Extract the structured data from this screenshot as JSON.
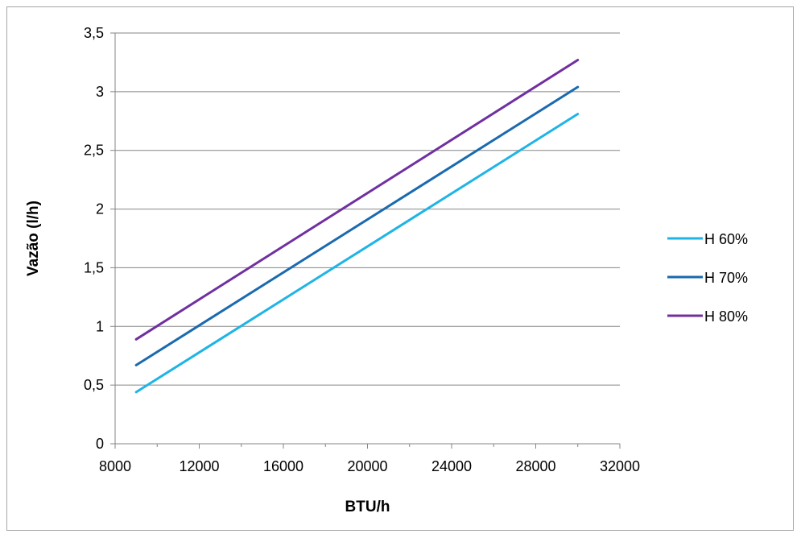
{
  "chart_data": {
    "type": "line",
    "title": "",
    "xlabel": "BTU/h",
    "ylabel": "Vazão (l/h)",
    "xlim": [
      8000,
      32000
    ],
    "ylim": [
      0,
      3.5
    ],
    "xticks": [
      8000,
      12000,
      16000,
      20000,
      24000,
      28000,
      32000
    ],
    "yticks": [
      0,
      0.5,
      1,
      1.5,
      2,
      2.5,
      3,
      3.5
    ],
    "xtick_labels": [
      "8000",
      "12000",
      "16000",
      "20000",
      "24000",
      "28000",
      "32000"
    ],
    "ytick_labels": [
      "0",
      "0,5",
      "1",
      "1,5",
      "2",
      "2,5",
      "3",
      "3,5"
    ],
    "grid": "horizontal",
    "legend_position": "right",
    "series": [
      {
        "name": "H 60%",
        "color": "#1fb4e6",
        "x": [
          9000,
          30000
        ],
        "y": [
          0.44,
          2.81
        ]
      },
      {
        "name": "H 70%",
        "color": "#1a6aaf",
        "x": [
          9000,
          30000
        ],
        "y": [
          0.67,
          3.04
        ]
      },
      {
        "name": "H 80%",
        "color": "#7030a0",
        "x": [
          9000,
          30000
        ],
        "y": [
          0.89,
          3.27
        ]
      }
    ]
  }
}
